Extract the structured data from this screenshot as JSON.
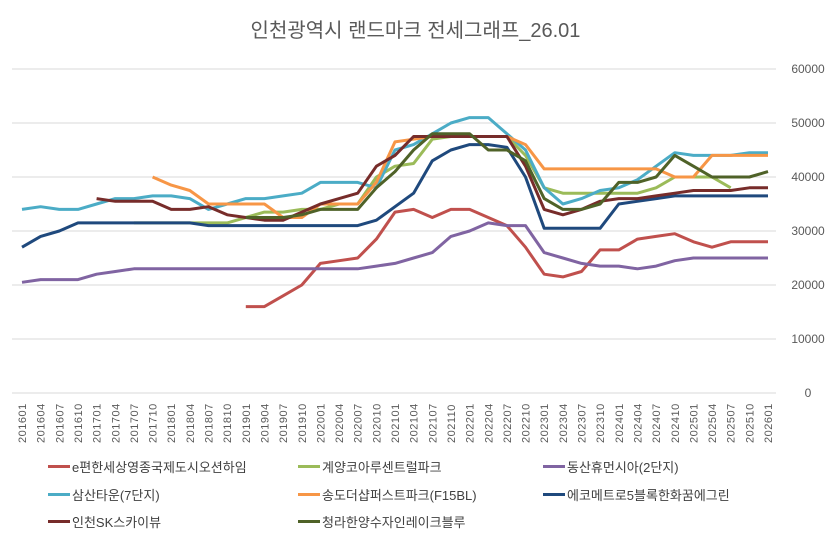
{
  "chart_data": {
    "type": "line",
    "title": "인천광역시 랜드마크 전세그래프_26.01",
    "xlabel": "",
    "ylabel": "",
    "ylim": [
      0,
      60000
    ],
    "yticks": [
      "0",
      "10000",
      "20000",
      "30000",
      "40000",
      "50000",
      "60000"
    ],
    "grid": true,
    "legend_position": "bottom",
    "categories": [
      "201601",
      "201604",
      "201607",
      "201610",
      "201701",
      "201704",
      "201707",
      "201710",
      "201801",
      "201804",
      "201807",
      "201810",
      "201901",
      "201904",
      "201907",
      "201910",
      "202001",
      "202004",
      "202007",
      "202010",
      "202101",
      "202104",
      "202107",
      "202110",
      "202201",
      "202204",
      "202207",
      "202210",
      "202301",
      "202304",
      "202307",
      "202310",
      "202401",
      "202404",
      "202407",
      "202410",
      "202501",
      "202504",
      "202507",
      "202510",
      "202601"
    ],
    "series": [
      {
        "name": "e편한세상영종국제도시오션하임",
        "color": "#c0504d",
        "values": [
          null,
          null,
          null,
          null,
          null,
          null,
          null,
          null,
          null,
          null,
          null,
          null,
          16000,
          16000,
          18000,
          20000,
          24000,
          24500,
          25000,
          28500,
          33500,
          34000,
          32500,
          34000,
          34000,
          32500,
          31000,
          27000,
          22000,
          21500,
          22500,
          26500,
          26500,
          28500,
          29000,
          29500,
          28000,
          27000,
          28000,
          28000,
          28000
        ]
      },
      {
        "name": "계양코아루센트럴파크",
        "color": "#9bbb59",
        "values": [
          null,
          null,
          null,
          null,
          null,
          null,
          31500,
          31500,
          31500,
          31500,
          31500,
          31500,
          32500,
          33500,
          33500,
          34000,
          34000,
          35000,
          35000,
          40000,
          42000,
          42500,
          47000,
          47500,
          47500,
          47500,
          47500,
          44000,
          38000,
          37000,
          37000,
          37000,
          37000,
          37000,
          38000,
          40000,
          40000,
          40000,
          38000,
          null,
          null
        ]
      },
      {
        "name": "동산휴먼시아(2단지)",
        "color": "#8064a2",
        "values": [
          20500,
          21000,
          21000,
          21000,
          22000,
          22500,
          23000,
          23000,
          23000,
          23000,
          23000,
          23000,
          23000,
          23000,
          23000,
          23000,
          23000,
          23000,
          23000,
          23500,
          24000,
          25000,
          26000,
          29000,
          30000,
          31500,
          31000,
          31000,
          26000,
          25000,
          24000,
          23500,
          23500,
          23000,
          23500,
          24500,
          25000,
          25000,
          25000,
          25000,
          25000
        ]
      },
      {
        "name": "삼산타운(7단지)",
        "color": "#4bacc6",
        "values": [
          34000,
          34500,
          34000,
          34000,
          35000,
          36000,
          36000,
          36500,
          36500,
          36000,
          34000,
          35000,
          36000,
          36000,
          36500,
          37000,
          39000,
          39000,
          39000,
          38000,
          45000,
          46000,
          48000,
          50000,
          51000,
          51000,
          48000,
          45000,
          38000,
          35000,
          36000,
          37500,
          38000,
          39500,
          42000,
          44500,
          44000,
          44000,
          44000,
          44500,
          44500
        ]
      },
      {
        "name": "송도더샵퍼스트파크(F15BL)",
        "color": "#f79646",
        "values": [
          null,
          null,
          null,
          null,
          null,
          null,
          null,
          40000,
          38500,
          37500,
          35000,
          35000,
          35000,
          35000,
          32500,
          32500,
          35000,
          35000,
          35000,
          39000,
          46500,
          47000,
          47500,
          47500,
          47500,
          47500,
          47500,
          46000,
          41500,
          41500,
          41500,
          41500,
          41500,
          41500,
          41500,
          40000,
          40000,
          44000,
          44000,
          44000,
          44000
        ]
      },
      {
        "name": "에코메트로5블록한화꿈에그린",
        "color": "#1f497d",
        "values": [
          27000,
          29000,
          30000,
          31500,
          31500,
          31500,
          31500,
          31500,
          31500,
          31500,
          31000,
          31000,
          31000,
          31000,
          31000,
          31000,
          31000,
          31000,
          31000,
          32000,
          34500,
          37000,
          43000,
          45000,
          46000,
          46000,
          45500,
          40000,
          30500,
          30500,
          30500,
          30500,
          35000,
          35500,
          36000,
          36500,
          36500,
          36500,
          36500,
          36500,
          36500
        ]
      },
      {
        "name": "인천SK스카이뷰",
        "color": "#772c2a",
        "values": [
          null,
          null,
          null,
          null,
          36000,
          35500,
          35500,
          35500,
          34000,
          34000,
          34500,
          33000,
          32500,
          32000,
          32000,
          33500,
          35000,
          36000,
          37000,
          42000,
          44000,
          47500,
          47500,
          47500,
          47500,
          47500,
          47500,
          42000,
          34000,
          33000,
          34000,
          35500,
          36000,
          36000,
          36500,
          37000,
          37500,
          37500,
          37500,
          38000,
          38000
        ]
      },
      {
        "name": "청라한양수자인레이크블루",
        "color": "#4f6228",
        "values": [
          null,
          null,
          null,
          null,
          null,
          null,
          null,
          null,
          null,
          null,
          null,
          null,
          32500,
          32500,
          32500,
          33000,
          34000,
          34000,
          34000,
          38000,
          41000,
          45000,
          48000,
          48000,
          48000,
          45000,
          45000,
          43000,
          36000,
          34000,
          34000,
          35000,
          39000,
          39000,
          40000,
          44000,
          42000,
          40000,
          40000,
          40000,
          41000
        ]
      }
    ]
  }
}
